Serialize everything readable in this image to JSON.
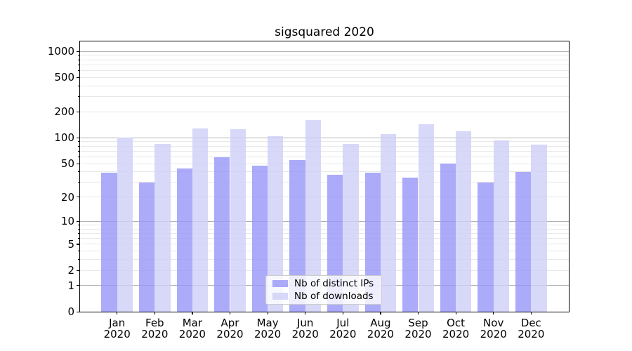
{
  "chart_data": {
    "type": "bar",
    "title": "sigsquared 2020",
    "months": [
      "Jan",
      "Feb",
      "Mar",
      "Apr",
      "May",
      "Jun",
      "Jul",
      "Aug",
      "Sep",
      "Oct",
      "Nov",
      "Dec"
    ],
    "year": "2020",
    "series": [
      {
        "name": "Nb of distinct IPs",
        "color": "#a9a9f9",
        "color_rgba": "rgba(150,150,248,0.8)",
        "values": [
          39,
          30,
          44,
          59,
          47,
          55,
          37,
          39,
          34,
          50,
          30,
          40
        ]
      },
      {
        "name": "Nb of downloads",
        "color": "#d8d8f9",
        "color_rgba": "rgba(206,206,248,0.8)",
        "values": [
          101,
          85,
          128,
          127,
          104,
          162,
          85,
          110,
          143,
          120,
          93,
          84
        ]
      }
    ],
    "yscale": "log10(1+y)",
    "ylim": [
      0,
      1300
    ],
    "yticks": [
      0,
      1,
      2,
      5,
      10,
      20,
      50,
      100,
      200,
      500,
      1000
    ],
    "grid": true,
    "grid_major_ticks": [
      1,
      10,
      100,
      1000
    ],
    "grid_minor_ticks": [
      2,
      3,
      4,
      5,
      6,
      7,
      8,
      9,
      20,
      30,
      40,
      50,
      60,
      70,
      80,
      90,
      200,
      300,
      400,
      500,
      600,
      700,
      800,
      900
    ],
    "grid_major_color": "#b2b2b2",
    "grid_minor_color": "#e8e8e8",
    "legend_position": "lower center"
  }
}
